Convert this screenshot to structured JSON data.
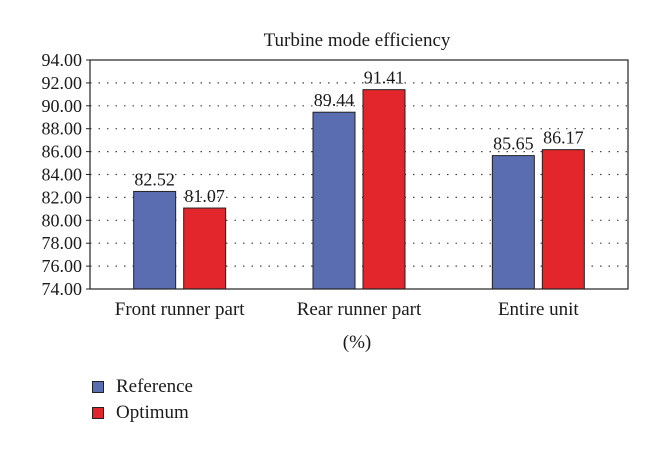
{
  "chart_data": {
    "type": "bar",
    "title": "Turbine mode efficiency",
    "xlabel": "(%)",
    "ylabel": "",
    "categories": [
      "Front runner part",
      "Rear runner part",
      "Entire unit"
    ],
    "series": [
      {
        "name": "Reference",
        "values": [
          82.52,
          89.44,
          85.65
        ],
        "labels": [
          "82.52",
          "89.44",
          "85.65"
        ],
        "color": "#5b6db1"
      },
      {
        "name": "Optimum",
        "values": [
          81.07,
          91.41,
          86.17
        ],
        "labels": [
          "81.07",
          "91.41",
          "86.17"
        ],
        "color": "#e3262b"
      }
    ],
    "ylim": [
      74,
      94
    ],
    "yticks": [
      "74.00",
      "76.00",
      "78.00",
      "80.00",
      "82.00",
      "84.00",
      "86.00",
      "88.00",
      "90.00",
      "92.00",
      "94.00"
    ],
    "grid": "horizontal dotted",
    "legend_position": "bottom-left"
  }
}
